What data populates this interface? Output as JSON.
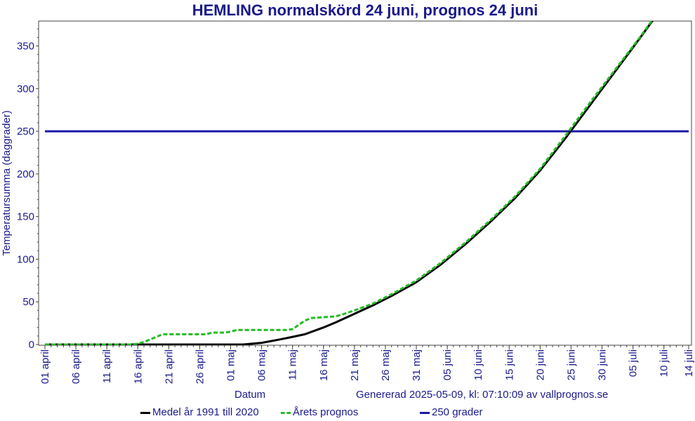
{
  "chart_data": {
    "type": "line",
    "title": "HEMLING normalskörd 24 juni, prognos 24 juni",
    "xlabel": "Datum",
    "ylabel": "Temperatursumma (daggrader)",
    "ylim": [
      0,
      380
    ],
    "yticks": [
      0,
      50,
      100,
      150,
      200,
      250,
      300,
      350
    ],
    "xlim_day": [
      0,
      104
    ],
    "xticks": [
      {
        "day": 0,
        "label": "01 april"
      },
      {
        "day": 5,
        "label": "06 april"
      },
      {
        "day": 10,
        "label": "11 april"
      },
      {
        "day": 15,
        "label": "16 april"
      },
      {
        "day": 20,
        "label": "21 april"
      },
      {
        "day": 25,
        "label": "26 april"
      },
      {
        "day": 30,
        "label": "01 maj"
      },
      {
        "day": 35,
        "label": "06 maj"
      },
      {
        "day": 40,
        "label": "11 maj"
      },
      {
        "day": 45,
        "label": "16 maj"
      },
      {
        "day": 50,
        "label": "21 maj"
      },
      {
        "day": 55,
        "label": "26 maj"
      },
      {
        "day": 60,
        "label": "31 maj"
      },
      {
        "day": 65,
        "label": "05 juni"
      },
      {
        "day": 70,
        "label": "10 juni"
      },
      {
        "day": 75,
        "label": "15 juni"
      },
      {
        "day": 80,
        "label": "20 juni"
      },
      {
        "day": 85,
        "label": "25 juni"
      },
      {
        "day": 90,
        "label": "30 juni"
      },
      {
        "day": 95,
        "label": "05 juli"
      },
      {
        "day": 100,
        "label": "10 juli"
      },
      {
        "day": 104,
        "label": "14 juli"
      }
    ],
    "series": [
      {
        "name": "Medel år 1991 till 2020",
        "color": "#000000",
        "dash": "solid",
        "points": [
          [
            0,
            0
          ],
          [
            15,
            0
          ],
          [
            20,
            0
          ],
          [
            25,
            0
          ],
          [
            32,
            0
          ],
          [
            35,
            2
          ],
          [
            38,
            6
          ],
          [
            40,
            9
          ],
          [
            42,
            12
          ],
          [
            45,
            20
          ],
          [
            47,
            26
          ],
          [
            50,
            36
          ],
          [
            53,
            46
          ],
          [
            56,
            57
          ],
          [
            60,
            73
          ],
          [
            64,
            94
          ],
          [
            68,
            118
          ],
          [
            72,
            144
          ],
          [
            76,
            172
          ],
          [
            80,
            204
          ],
          [
            84,
            241
          ],
          [
            88,
            280
          ],
          [
            92,
            319
          ],
          [
            96,
            358
          ],
          [
            98,
            378
          ],
          [
            100,
            395
          ]
        ]
      },
      {
        "name": "Årets prognos",
        "color": "#22bb22",
        "dash": "dashed",
        "points": [
          [
            0,
            0
          ],
          [
            14,
            0
          ],
          [
            15,
            1
          ],
          [
            16,
            3
          ],
          [
            17,
            6
          ],
          [
            18,
            9
          ],
          [
            19,
            12
          ],
          [
            20,
            12
          ],
          [
            22,
            12
          ],
          [
            24,
            12
          ],
          [
            26,
            12
          ],
          [
            27,
            14
          ],
          [
            29,
            14
          ],
          [
            30,
            15
          ],
          [
            31,
            17
          ],
          [
            33,
            17
          ],
          [
            35,
            17
          ],
          [
            37,
            17
          ],
          [
            39,
            17
          ],
          [
            40,
            18
          ],
          [
            41,
            23
          ],
          [
            42,
            28
          ],
          [
            43,
            31
          ],
          [
            45,
            32
          ],
          [
            47,
            33
          ],
          [
            48,
            35
          ],
          [
            50,
            40
          ],
          [
            53,
            48
          ],
          [
            56,
            59
          ],
          [
            60,
            75
          ],
          [
            64,
            96
          ],
          [
            68,
            120
          ],
          [
            72,
            146
          ],
          [
            76,
            174
          ],
          [
            80,
            206
          ],
          [
            84,
            244
          ],
          [
            88,
            283
          ],
          [
            92,
            321
          ],
          [
            96,
            359
          ],
          [
            98,
            379
          ],
          [
            100,
            396
          ]
        ]
      },
      {
        "name": "250 grader",
        "color": "#1a1aa8",
        "dash": "solid",
        "points": [
          [
            0,
            250
          ],
          [
            104,
            250
          ]
        ]
      }
    ],
    "grid": false,
    "legend": "bottom"
  },
  "footer": {
    "datum": "Datum",
    "generated": "Genererad 2025-05-09, kl: 07:10:09 av vallprognos.se"
  },
  "legend": {
    "medel": "Medel år 1991 till 2020",
    "prognos": "Årets prognos",
    "grader": "250 grader"
  }
}
